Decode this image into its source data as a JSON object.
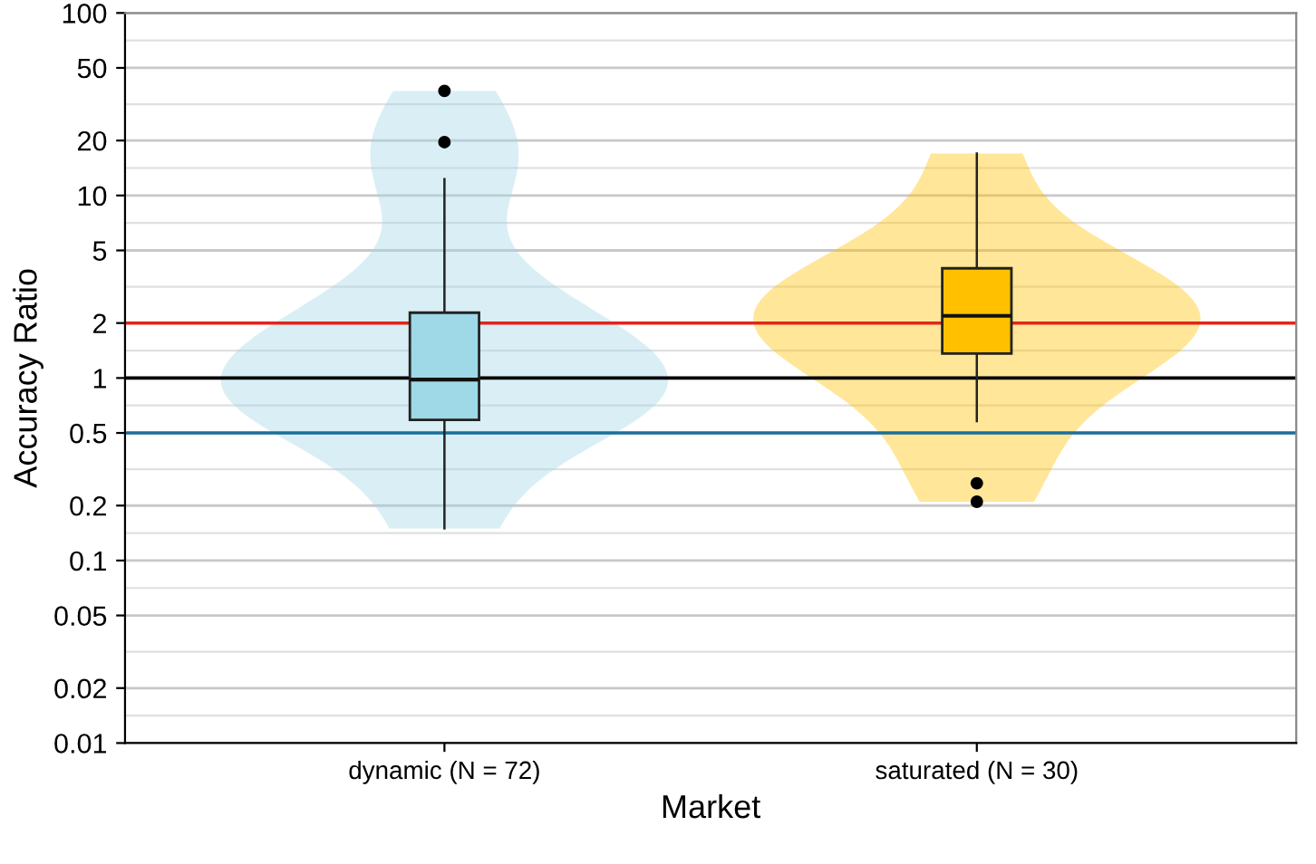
{
  "chart_data": {
    "type": "box",
    "xlabel": "Market",
    "ylabel": "Accuracy Ratio",
    "categories": [
      "dynamic (N = 72)",
      "saturated (N = 30)"
    ],
    "series": [
      {
        "colors": [
          "#9fd8e6",
          "#ffc000"
        ],
        "boxes": [
          {
            "low": 0.15,
            "q1": 0.59,
            "median": 0.98,
            "q3": 2.28,
            "high": 12.3,
            "outliers": [
              19.6,
              37.4
            ]
          },
          {
            "low": 0.58,
            "q1": 1.36,
            "median": 2.19,
            "q3": 3.99,
            "high": 17.0,
            "outliers": [
              0.21,
              0.265
            ]
          }
        ]
      }
    ],
    "log": "y",
    "ylim": [
      0.01,
      100
    ],
    "yticks": [
      0.01,
      0.02,
      0.05,
      0.1,
      0.2,
      0.5,
      1,
      2,
      5,
      10,
      20,
      50,
      100
    ],
    "grid": "y",
    "ref_lines": [
      {
        "axis": "y",
        "value": 2,
        "color": "#e3241b"
      },
      {
        "axis": "y",
        "value": 1,
        "color": "#000000"
      },
      {
        "axis": "y",
        "value": 0.5,
        "color": "#1a6f9a"
      }
    ]
  }
}
